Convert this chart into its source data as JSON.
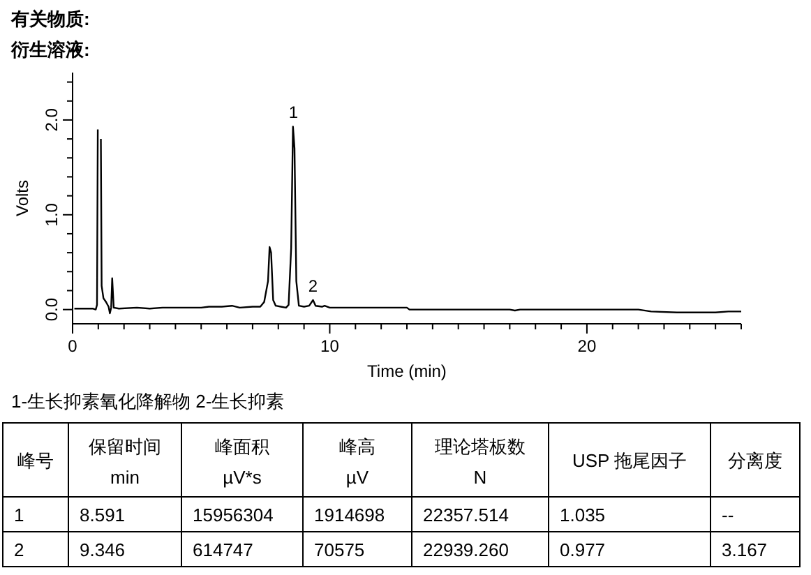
{
  "chart_data": {
    "type": "line",
    "title": "有关物质:",
    "subtitle": "衍生溶液:",
    "xlabel": "Time (min)",
    "ylabel": "Volts",
    "xlim": [
      0,
      26
    ],
    "xticks": [
      0,
      {
        "value": 1,
        "label": null
      },
      {
        "value": 2,
        "label": null
      },
      {
        "value": 3,
        "label": null
      },
      {
        "value": 4,
        "label": null
      },
      {
        "value": 5,
        "label": null
      },
      {
        "value": 6,
        "label": null
      },
      {
        "value": 7,
        "label": null
      },
      {
        "value": 8,
        "label": null
      },
      {
        "value": 9,
        "label": null
      },
      10,
      {
        "value": 11,
        "label": null
      },
      {
        "value": 12,
        "label": null
      },
      {
        "value": 13,
        "label": null
      },
      {
        "value": 14,
        "label": null
      },
      {
        "value": 15,
        "label": null
      },
      {
        "value": 16,
        "label": null
      },
      {
        "value": 17,
        "label": null
      },
      {
        "value": 18,
        "label": null
      },
      {
        "value": 19,
        "label": null
      },
      20,
      {
        "value": 21,
        "label": null
      },
      {
        "value": 22,
        "label": null
      },
      {
        "value": 23,
        "label": null
      },
      {
        "value": 24,
        "label": null
      },
      {
        "value": 25,
        "label": null
      },
      {
        "value": 26,
        "label": null
      }
    ],
    "ylim": [
      -0.15,
      2.5
    ],
    "yticks": [
      {
        "value": 0,
        "label": "0.0"
      },
      {
        "value": 0.2,
        "label": null
      },
      {
        "value": 0.4,
        "label": null
      },
      {
        "value": 0.6,
        "label": null
      },
      {
        "value": 0.8,
        "label": null
      },
      {
        "value": 1,
        "label": "1.0"
      },
      {
        "value": 1.2,
        "label": null
      },
      {
        "value": 1.4,
        "label": null
      },
      {
        "value": 1.6,
        "label": null
      },
      {
        "value": 1.8,
        "label": null
      },
      {
        "value": 2,
        "label": "2.0"
      },
      {
        "value": 2.2,
        "label": null
      },
      {
        "value": 2.4,
        "label": null
      }
    ],
    "line_style": "solid",
    "marker": "none",
    "series": [
      {
        "color": "#000000",
        "x": [
          0.07,
          0.8,
          0.9,
          0.95,
          0.98,
          1.0,
          1.08,
          1.1,
          1.13,
          1.2,
          1.3,
          1.4,
          1.45,
          1.5,
          1.54,
          1.6,
          1.8,
          2.5,
          3,
          3.5,
          4,
          5,
          5.3,
          5.8,
          6.2,
          6.5,
          7.0,
          7.3,
          7.45,
          7.6,
          7.66,
          7.72,
          7.8,
          7.9,
          8.1,
          8.3,
          8.4,
          8.5,
          8.57,
          8.63,
          8.7,
          8.8,
          9.0,
          9.2,
          9.35,
          9.45,
          9.7,
          9.8,
          10,
          13,
          13.1,
          17,
          17.2,
          17.4,
          19,
          22,
          22.5,
          23.5,
          25,
          25.5,
          26
        ],
        "values": [
          0.01,
          0.01,
          0.0,
          0.05,
          1.9,
          null,
          null,
          1.8,
          0.25,
          0.12,
          0.08,
          0.03,
          -0.04,
          0.02,
          0.33,
          0.02,
          0.01,
          0.02,
          0.01,
          0.02,
          0.02,
          0.02,
          0.03,
          0.03,
          0.04,
          0.02,
          0.03,
          0.03,
          0.08,
          0.3,
          0.66,
          0.6,
          0.1,
          0.04,
          0.03,
          0.02,
          0.05,
          0.65,
          1.93,
          1.7,
          0.3,
          0.04,
          0.03,
          0.04,
          0.1,
          0.04,
          0.03,
          0.04,
          0.02,
          0.02,
          0.0,
          0.0,
          -0.01,
          0.0,
          0.0,
          0.0,
          -0.02,
          -0.03,
          -0.03,
          -0.02,
          -0.02
        ]
      }
    ],
    "annotations": [
      {
        "text": "1",
        "x": 8.591,
        "y": 1.93
      },
      {
        "text": "2",
        "x": 9.346,
        "y": 0.1
      },
      "1-生长抑素氧化降解物 2-生长抑素",
      "峰号",
      "保留时间\nmin",
      "峰面积\nµV*s",
      "峰高\nµV",
      "理论塔板数\nN",
      "USP 拖尾因子",
      "分离度",
      "1",
      "8.591",
      "15956304",
      "1914698",
      "22357.514",
      "1.035",
      "--",
      "2",
      "9.346",
      "614747",
      "70575",
      "22939.260",
      "0.977",
      "3.167"
    ]
  }
}
